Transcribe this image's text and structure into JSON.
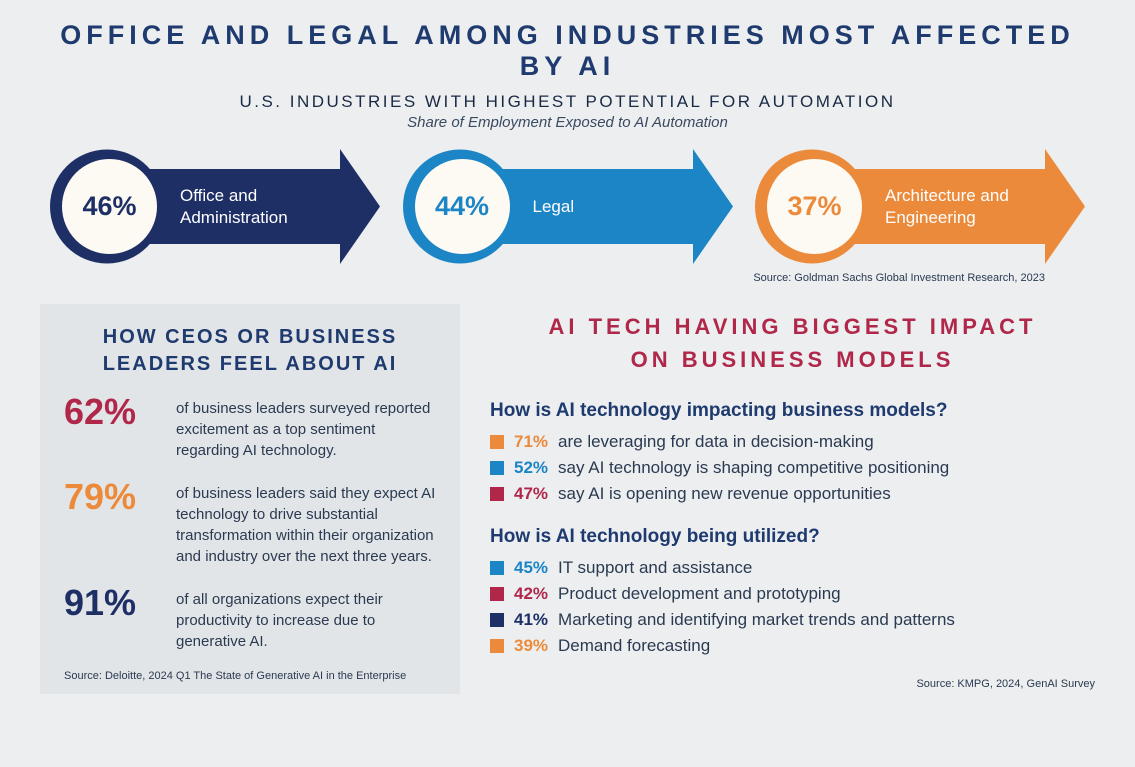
{
  "header": {
    "title": "OFFICE AND LEGAL AMONG INDUSTRIES MOST AFFECTED BY AI",
    "subtitle": "U.S. INDUSTRIES WITH HIGHEST POTENTIAL FOR AUTOMATION",
    "note": "Share of Employment Exposed to AI Automation"
  },
  "colors": {
    "navy": "#1e2f66",
    "blue": "#1b85c6",
    "orange": "#ec8a3b",
    "red": "#b0274a",
    "cream": "#fdfaf3"
  },
  "arrows": [
    {
      "pct": "46%",
      "label": "Office and Administration",
      "fill": "#1e2f66",
      "text_color": "#1e2f66"
    },
    {
      "pct": "44%",
      "label": "Legal",
      "fill": "#1b85c6",
      "text_color": "#1b85c6"
    },
    {
      "pct": "37%",
      "label": "Architecture and Engineering",
      "fill": "#ec8a3b",
      "text_color": "#ec8a3b"
    }
  ],
  "top_source": "Source: Goldman Sachs Global Investment Research, 2023",
  "left": {
    "title": "HOW CEOS OR BUSINESS LEADERS FEEL ABOUT AI",
    "stats": [
      {
        "pct": "62%",
        "color": "#b0274a",
        "text": "of business leaders surveyed reported excitement as a top sentiment regarding AI technology."
      },
      {
        "pct": "79%",
        "color": "#ec8a3b",
        "text": "of business leaders said they expect AI technology to drive substantial transformation within their organization and industry over the next three years."
      },
      {
        "pct": "91%",
        "color": "#1e2f66",
        "text": "of all organizations expect their productivity to increase due to generative AI."
      }
    ],
    "source": "Source: Deloitte, 2024 Q1 The State of Generative AI in the Enterprise"
  },
  "right": {
    "title_line1": "AI TECH HAVING BIGGEST IMPACT",
    "title_line2": "ON BUSINESS MODELS",
    "q1": {
      "heading": "How is AI technology impacting business models?",
      "items": [
        {
          "color": "#ec8a3b",
          "pct": "71%",
          "text": "are leveraging for data in decision-making"
        },
        {
          "color": "#1b85c6",
          "pct": "52%",
          "text": "say AI technology is shaping competitive positioning"
        },
        {
          "color": "#b0274a",
          "pct": "47%",
          "text": "say AI is opening new revenue opportunities"
        }
      ]
    },
    "q2": {
      "heading": "How is AI technology being utilized?",
      "items": [
        {
          "color": "#1b85c6",
          "pct": "45%",
          "text": "IT support and assistance"
        },
        {
          "color": "#b0274a",
          "pct": "42%",
          "text": "Product development and prototyping"
        },
        {
          "color": "#1e2f66",
          "pct": "41%",
          "text": "Marketing and identifying market trends and patterns"
        },
        {
          "color": "#ec8a3b",
          "pct": "39%",
          "text": "Demand forecasting"
        }
      ]
    },
    "source": "Source: KMPG, 2024, GenAI Survey"
  }
}
